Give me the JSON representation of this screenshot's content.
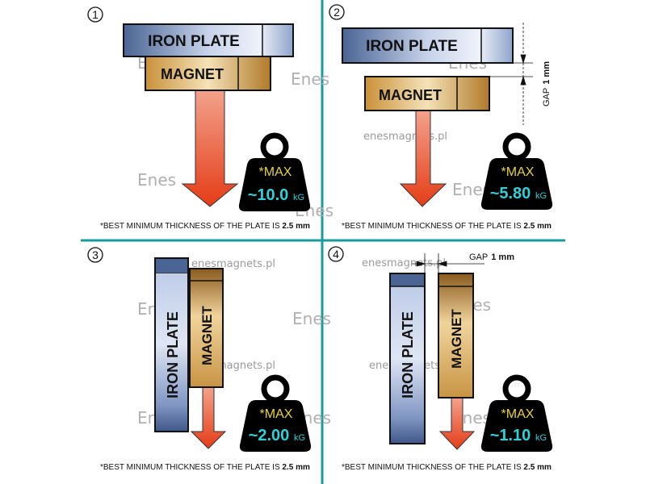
{
  "colors": {
    "divider": "#1a9b9b",
    "iron": "#9fb3d6",
    "magnet": "#c8953f",
    "arrow": "#e8411c",
    "max_text": "#e8d43a",
    "value_text": "#2fd0d8"
  },
  "watermark": {
    "url": "enesmagnets.pl",
    "logo": "Enes"
  },
  "footnote": {
    "text": "*BEST MINIMUM THICKNESS OF THE PLATE IS ",
    "value": "2.5 mm"
  },
  "labels": {
    "iron": "IRON PLATE",
    "iron_vertical": "IRON  PLATE",
    "magnet": "MAGNET",
    "gap": "GAP",
    "gap_value": "1 mm",
    "max": "*MAX",
    "unit": "kG"
  },
  "panels": [
    {
      "number": "1",
      "value": "~10.0"
    },
    {
      "number": "2",
      "value": "~5.80"
    },
    {
      "number": "3",
      "value": "~2.00"
    },
    {
      "number": "4",
      "value": "~1.10"
    }
  ]
}
